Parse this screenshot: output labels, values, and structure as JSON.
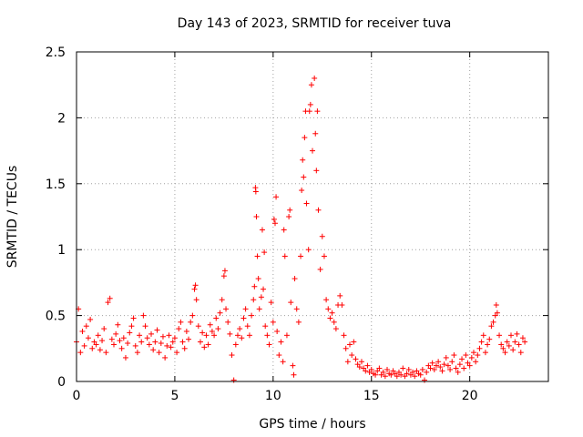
{
  "chart_data": {
    "type": "scatter",
    "title": "Day 143 of 2023, SRMTID for receiver tuva",
    "xlabel": "GPS time / hours",
    "ylabel": "SRMTID / TECUs",
    "xlim": [
      0,
      24
    ],
    "ylim": [
      0,
      2.5
    ],
    "xticks": [
      0,
      5,
      10,
      15,
      20
    ],
    "yticks": [
      0,
      0.5,
      1,
      1.5,
      2,
      2.5
    ],
    "xtick_labels": [
      "0",
      "5",
      "10",
      "15",
      "20"
    ],
    "ytick_labels": [
      "0",
      "0.5",
      "1",
      "1.5",
      "2",
      "2.5"
    ],
    "grid": true,
    "marker": "+",
    "color": "#ff0000",
    "series": [
      {
        "name": "SRMTID",
        "points": [
          [
            0.0,
            0.3
          ],
          [
            0.1,
            0.55
          ],
          [
            0.2,
            0.22
          ],
          [
            0.3,
            0.38
          ],
          [
            0.4,
            0.27
          ],
          [
            0.5,
            0.42
          ],
          [
            0.6,
            0.33
          ],
          [
            0.7,
            0.47
          ],
          [
            0.8,
            0.25
          ],
          [
            0.9,
            0.3
          ],
          [
            1.0,
            0.28
          ],
          [
            1.1,
            0.35
          ],
          [
            1.2,
            0.24
          ],
          [
            1.3,
            0.31
          ],
          [
            1.4,
            0.4
          ],
          [
            1.5,
            0.22
          ],
          [
            1.6,
            0.6
          ],
          [
            1.7,
            0.63
          ],
          [
            1.8,
            0.32
          ],
          [
            1.9,
            0.28
          ],
          [
            2.0,
            0.36
          ],
          [
            2.1,
            0.43
          ],
          [
            2.2,
            0.31
          ],
          [
            2.3,
            0.25
          ],
          [
            2.4,
            0.33
          ],
          [
            2.5,
            0.18
          ],
          [
            2.6,
            0.29
          ],
          [
            2.7,
            0.37
          ],
          [
            2.8,
            0.42
          ],
          [
            2.9,
            0.48
          ],
          [
            3.0,
            0.27
          ],
          [
            3.1,
            0.22
          ],
          [
            3.2,
            0.35
          ],
          [
            3.3,
            0.3
          ],
          [
            3.4,
            0.5
          ],
          [
            3.5,
            0.42
          ],
          [
            3.6,
            0.33
          ],
          [
            3.7,
            0.28
          ],
          [
            3.8,
            0.36
          ],
          [
            3.9,
            0.24
          ],
          [
            4.0,
            0.3
          ],
          [
            4.1,
            0.39
          ],
          [
            4.2,
            0.22
          ],
          [
            4.3,
            0.29
          ],
          [
            4.4,
            0.34
          ],
          [
            4.5,
            0.18
          ],
          [
            4.6,
            0.27
          ],
          [
            4.7,
            0.35
          ],
          [
            4.8,
            0.26
          ],
          [
            4.9,
            0.3
          ],
          [
            5.0,
            0.33
          ],
          [
            5.1,
            0.22
          ],
          [
            5.2,
            0.4
          ],
          [
            5.3,
            0.45
          ],
          [
            5.4,
            0.3
          ],
          [
            5.5,
            0.25
          ],
          [
            5.6,
            0.38
          ],
          [
            5.7,
            0.32
          ],
          [
            5.8,
            0.45
          ],
          [
            5.9,
            0.5
          ],
          [
            6.0,
            0.7
          ],
          [
            6.05,
            0.73
          ],
          [
            6.1,
            0.62
          ],
          [
            6.2,
            0.42
          ],
          [
            6.3,
            0.3
          ],
          [
            6.4,
            0.37
          ],
          [
            6.5,
            0.26
          ],
          [
            6.6,
            0.35
          ],
          [
            6.7,
            0.28
          ],
          [
            6.8,
            0.43
          ],
          [
            6.9,
            0.38
          ],
          [
            7.0,
            0.35
          ],
          [
            7.1,
            0.48
          ],
          [
            7.2,
            0.4
          ],
          [
            7.3,
            0.52
          ],
          [
            7.4,
            0.62
          ],
          [
            7.5,
            0.8
          ],
          [
            7.55,
            0.84
          ],
          [
            7.6,
            0.55
          ],
          [
            7.7,
            0.45
          ],
          [
            7.8,
            0.36
          ],
          [
            7.9,
            0.2
          ],
          [
            8.0,
            0.01
          ],
          [
            8.1,
            0.28
          ],
          [
            8.2,
            0.35
          ],
          [
            8.3,
            0.4
          ],
          [
            8.4,
            0.33
          ],
          [
            8.5,
            0.48
          ],
          [
            8.6,
            0.55
          ],
          [
            8.7,
            0.42
          ],
          [
            8.8,
            0.35
          ],
          [
            8.9,
            0.5
          ],
          [
            9.0,
            0.62
          ],
          [
            9.05,
            0.72
          ],
          [
            9.1,
            1.47
          ],
          [
            9.12,
            1.44
          ],
          [
            9.15,
            1.25
          ],
          [
            9.2,
            0.95
          ],
          [
            9.25,
            0.78
          ],
          [
            9.3,
            0.55
          ],
          [
            9.4,
            0.64
          ],
          [
            9.45,
            1.15
          ],
          [
            9.5,
            0.7
          ],
          [
            9.55,
            0.98
          ],
          [
            9.6,
            0.42
          ],
          [
            9.7,
            0.35
          ],
          [
            9.8,
            0.28
          ],
          [
            9.9,
            0.6
          ],
          [
            10.0,
            0.45
          ],
          [
            10.05,
            1.23
          ],
          [
            10.1,
            1.2
          ],
          [
            10.15,
            1.4
          ],
          [
            10.2,
            0.38
          ],
          [
            10.3,
            0.2
          ],
          [
            10.4,
            0.3
          ],
          [
            10.5,
            0.15
          ],
          [
            10.55,
            1.15
          ],
          [
            10.6,
            0.95
          ],
          [
            10.7,
            0.35
          ],
          [
            10.8,
            1.25
          ],
          [
            10.85,
            1.3
          ],
          [
            10.9,
            0.6
          ],
          [
            11.0,
            0.12
          ],
          [
            11.05,
            0.05
          ],
          [
            11.1,
            0.78
          ],
          [
            11.2,
            0.55
          ],
          [
            11.3,
            0.45
          ],
          [
            11.4,
            0.95
          ],
          [
            11.45,
            1.45
          ],
          [
            11.5,
            1.68
          ],
          [
            11.55,
            1.55
          ],
          [
            11.6,
            1.85
          ],
          [
            11.65,
            2.05
          ],
          [
            11.7,
            1.35
          ],
          [
            11.8,
            1.0
          ],
          [
            11.85,
            2.05
          ],
          [
            11.9,
            2.1
          ],
          [
            11.95,
            2.25
          ],
          [
            12.0,
            1.75
          ],
          [
            12.1,
            2.3
          ],
          [
            12.15,
            1.88
          ],
          [
            12.2,
            1.6
          ],
          [
            12.25,
            2.05
          ],
          [
            12.3,
            1.3
          ],
          [
            12.4,
            0.85
          ],
          [
            12.5,
            1.1
          ],
          [
            12.6,
            0.95
          ],
          [
            12.7,
            0.62
          ],
          [
            12.8,
            0.55
          ],
          [
            12.9,
            0.48
          ],
          [
            13.0,
            0.52
          ],
          [
            13.1,
            0.45
          ],
          [
            13.2,
            0.4
          ],
          [
            13.3,
            0.58
          ],
          [
            13.4,
            0.65
          ],
          [
            13.5,
            0.58
          ],
          [
            13.6,
            0.35
          ],
          [
            13.7,
            0.25
          ],
          [
            13.8,
            0.15
          ],
          [
            13.9,
            0.28
          ],
          [
            14.0,
            0.2
          ],
          [
            14.1,
            0.3
          ],
          [
            14.2,
            0.17
          ],
          [
            14.3,
            0.13
          ],
          [
            14.4,
            0.11
          ],
          [
            14.5,
            0.15
          ],
          [
            14.6,
            0.1
          ],
          [
            14.7,
            0.08
          ],
          [
            14.8,
            0.12
          ],
          [
            14.9,
            0.07
          ],
          [
            15.0,
            0.09
          ],
          [
            15.1,
            0.06
          ],
          [
            15.2,
            0.05
          ],
          [
            15.3,
            0.08
          ],
          [
            15.4,
            0.1
          ],
          [
            15.5,
            0.05
          ],
          [
            15.6,
            0.07
          ],
          [
            15.7,
            0.04
          ],
          [
            15.8,
            0.09
          ],
          [
            15.9,
            0.06
          ],
          [
            16.0,
            0.05
          ],
          [
            16.1,
            0.08
          ],
          [
            16.2,
            0.06
          ],
          [
            16.3,
            0.04
          ],
          [
            16.4,
            0.07
          ],
          [
            16.5,
            0.05
          ],
          [
            16.6,
            0.1
          ],
          [
            16.7,
            0.04
          ],
          [
            16.8,
            0.06
          ],
          [
            16.9,
            0.09
          ],
          [
            17.0,
            0.05
          ],
          [
            17.1,
            0.07
          ],
          [
            17.2,
            0.04
          ],
          [
            17.3,
            0.08
          ],
          [
            17.4,
            0.06
          ],
          [
            17.5,
            0.05
          ],
          [
            17.6,
            0.09
          ],
          [
            17.7,
            0.01
          ],
          [
            17.8,
            0.07
          ],
          [
            17.9,
            0.12
          ],
          [
            18.0,
            0.1
          ],
          [
            18.1,
            0.14
          ],
          [
            18.2,
            0.09
          ],
          [
            18.3,
            0.12
          ],
          [
            18.4,
            0.15
          ],
          [
            18.5,
            0.11
          ],
          [
            18.6,
            0.08
          ],
          [
            18.7,
            0.13
          ],
          [
            18.8,
            0.18
          ],
          [
            18.9,
            0.12
          ],
          [
            19.0,
            0.09
          ],
          [
            19.1,
            0.15
          ],
          [
            19.2,
            0.2
          ],
          [
            19.3,
            0.1
          ],
          [
            19.4,
            0.07
          ],
          [
            19.5,
            0.13
          ],
          [
            19.6,
            0.17
          ],
          [
            19.7,
            0.1
          ],
          [
            19.8,
            0.2
          ],
          [
            19.9,
            0.14
          ],
          [
            20.0,
            0.12
          ],
          [
            20.1,
            0.18
          ],
          [
            20.2,
            0.22
          ],
          [
            20.3,
            0.15
          ],
          [
            20.4,
            0.2
          ],
          [
            20.5,
            0.25
          ],
          [
            20.6,
            0.3
          ],
          [
            20.7,
            0.35
          ],
          [
            20.8,
            0.22
          ],
          [
            20.9,
            0.28
          ],
          [
            21.0,
            0.32
          ],
          [
            21.1,
            0.42
          ],
          [
            21.2,
            0.45
          ],
          [
            21.3,
            0.5
          ],
          [
            21.35,
            0.58
          ],
          [
            21.4,
            0.52
          ],
          [
            21.5,
            0.35
          ],
          [
            21.6,
            0.28
          ],
          [
            21.7,
            0.25
          ],
          [
            21.8,
            0.22
          ],
          [
            21.9,
            0.3
          ],
          [
            22.0,
            0.27
          ],
          [
            22.1,
            0.35
          ],
          [
            22.2,
            0.24
          ],
          [
            22.3,
            0.3
          ],
          [
            22.4,
            0.36
          ],
          [
            22.5,
            0.28
          ],
          [
            22.6,
            0.22
          ],
          [
            22.7,
            0.33
          ],
          [
            22.8,
            0.3
          ]
        ]
      }
    ]
  }
}
